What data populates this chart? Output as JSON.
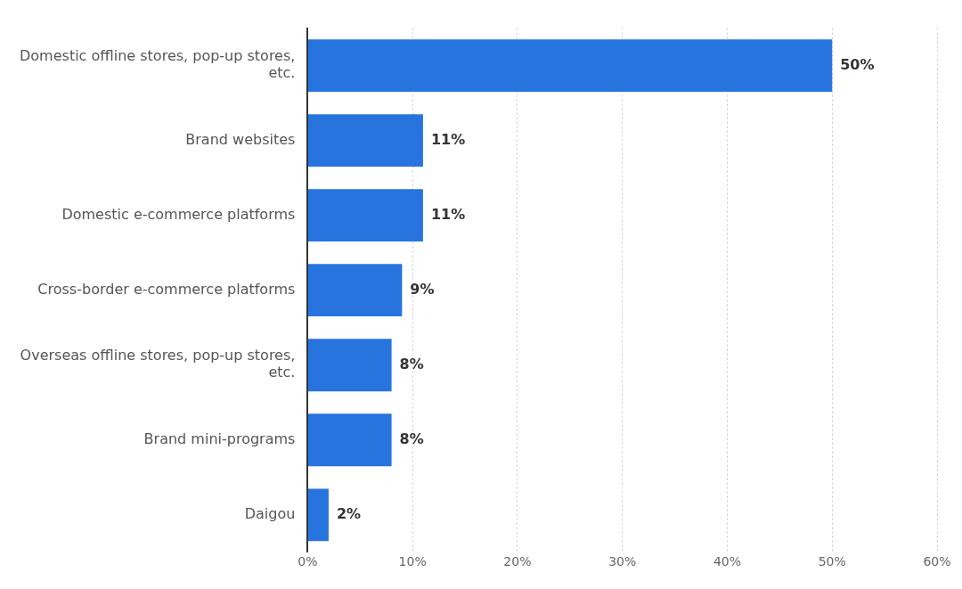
{
  "chart_data": {
    "type": "bar",
    "orientation": "horizontal",
    "categories": [
      "Domestic offline stores, pop-up stores, etc.",
      "Brand websites",
      "Domestic e-commerce platforms",
      "Cross-border e-commerce platforms",
      "Overseas offline stores, pop-up stores, etc.",
      "Brand mini-programs",
      "Daigou"
    ],
    "values": [
      50,
      11,
      11,
      9,
      8,
      8,
      2
    ],
    "value_labels": [
      "50%",
      "11%",
      "11%",
      "9%",
      "8%",
      "8%",
      "2%"
    ],
    "color": "#2874de",
    "xlim": [
      0,
      60
    ],
    "xticks": [
      {
        "value": 0,
        "label": "0%"
      },
      {
        "value": 10,
        "label": "10%"
      },
      {
        "value": 20,
        "label": "20%"
      },
      {
        "value": 30,
        "label": "30%"
      },
      {
        "value": 40,
        "label": "40%"
      },
      {
        "value": 50,
        "label": "50%"
      },
      {
        "value": 60,
        "label": "60%"
      }
    ],
    "grid": "x",
    "legend": false
  }
}
